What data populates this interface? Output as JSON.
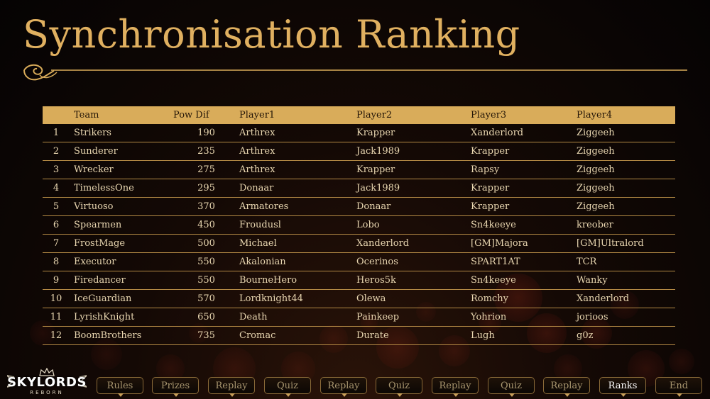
{
  "title": "Synchronisation Ranking",
  "table": {
    "headers": [
      "",
      "Team",
      "Pow Dif",
      "Player1",
      "Player2",
      "Player3",
      "Player4"
    ],
    "rows": [
      [
        "1",
        "Strikers",
        "190",
        "Arthrex",
        "Krapper",
        "Xanderlord",
        "Ziggeeh"
      ],
      [
        "2",
        "Sunderer",
        "235",
        "Arthrex",
        "Jack1989",
        "Krapper",
        "Ziggeeh"
      ],
      [
        "3",
        "Wrecker",
        "275",
        "Arthrex",
        "Krapper",
        "Rapsy",
        "Ziggeeh"
      ],
      [
        "4",
        "TimelessOne",
        "295",
        "Donaar",
        "Jack1989",
        "Krapper",
        "Ziggeeh"
      ],
      [
        "5",
        "Virtuoso",
        "370",
        "Armatores",
        "Donaar",
        "Krapper",
        "Ziggeeh"
      ],
      [
        "6",
        "Spearmen",
        "450",
        "Froudusl",
        "Lobo",
        "Sn4keeye",
        "kreober"
      ],
      [
        "7",
        "FrostMage",
        "500",
        "Michael",
        "Xanderlord",
        "[GM]Majora",
        "[GM]Ultralord"
      ],
      [
        "8",
        "Executor",
        "550",
        "Akalonian",
        "Ocerinos",
        "SPART1AT",
        "TCR"
      ],
      [
        "9",
        "Firedancer",
        "550",
        "BourneHero",
        "Heros5k",
        "Sn4keeye",
        "Wanky"
      ],
      [
        "10",
        "IceGuardian",
        "570",
        "Lordknight44",
        "Olewa",
        "Romchy",
        "Xanderlord"
      ],
      [
        "11",
        "LyrishKnight",
        "650",
        "Death",
        "Painkeep",
        "Yohrion",
        "jorioos"
      ],
      [
        "12",
        "BoomBrothers",
        "735",
        "Cromac",
        "Durate",
        "Lugh",
        "g0z"
      ]
    ]
  },
  "logo": {
    "name": "SKYLORDS",
    "sub": "REBORN"
  },
  "nav": {
    "items": [
      "Rules",
      "Prizes",
      "Replay",
      "Quiz",
      "Replay",
      "Quiz",
      "Replay",
      "Quiz",
      "Replay",
      "Ranks",
      "End"
    ],
    "active": "Ranks"
  },
  "colors": {
    "accent": "#d9ac5a",
    "title": "#e0b060",
    "text": "#e8d6b0",
    "background": "#0a0604"
  }
}
